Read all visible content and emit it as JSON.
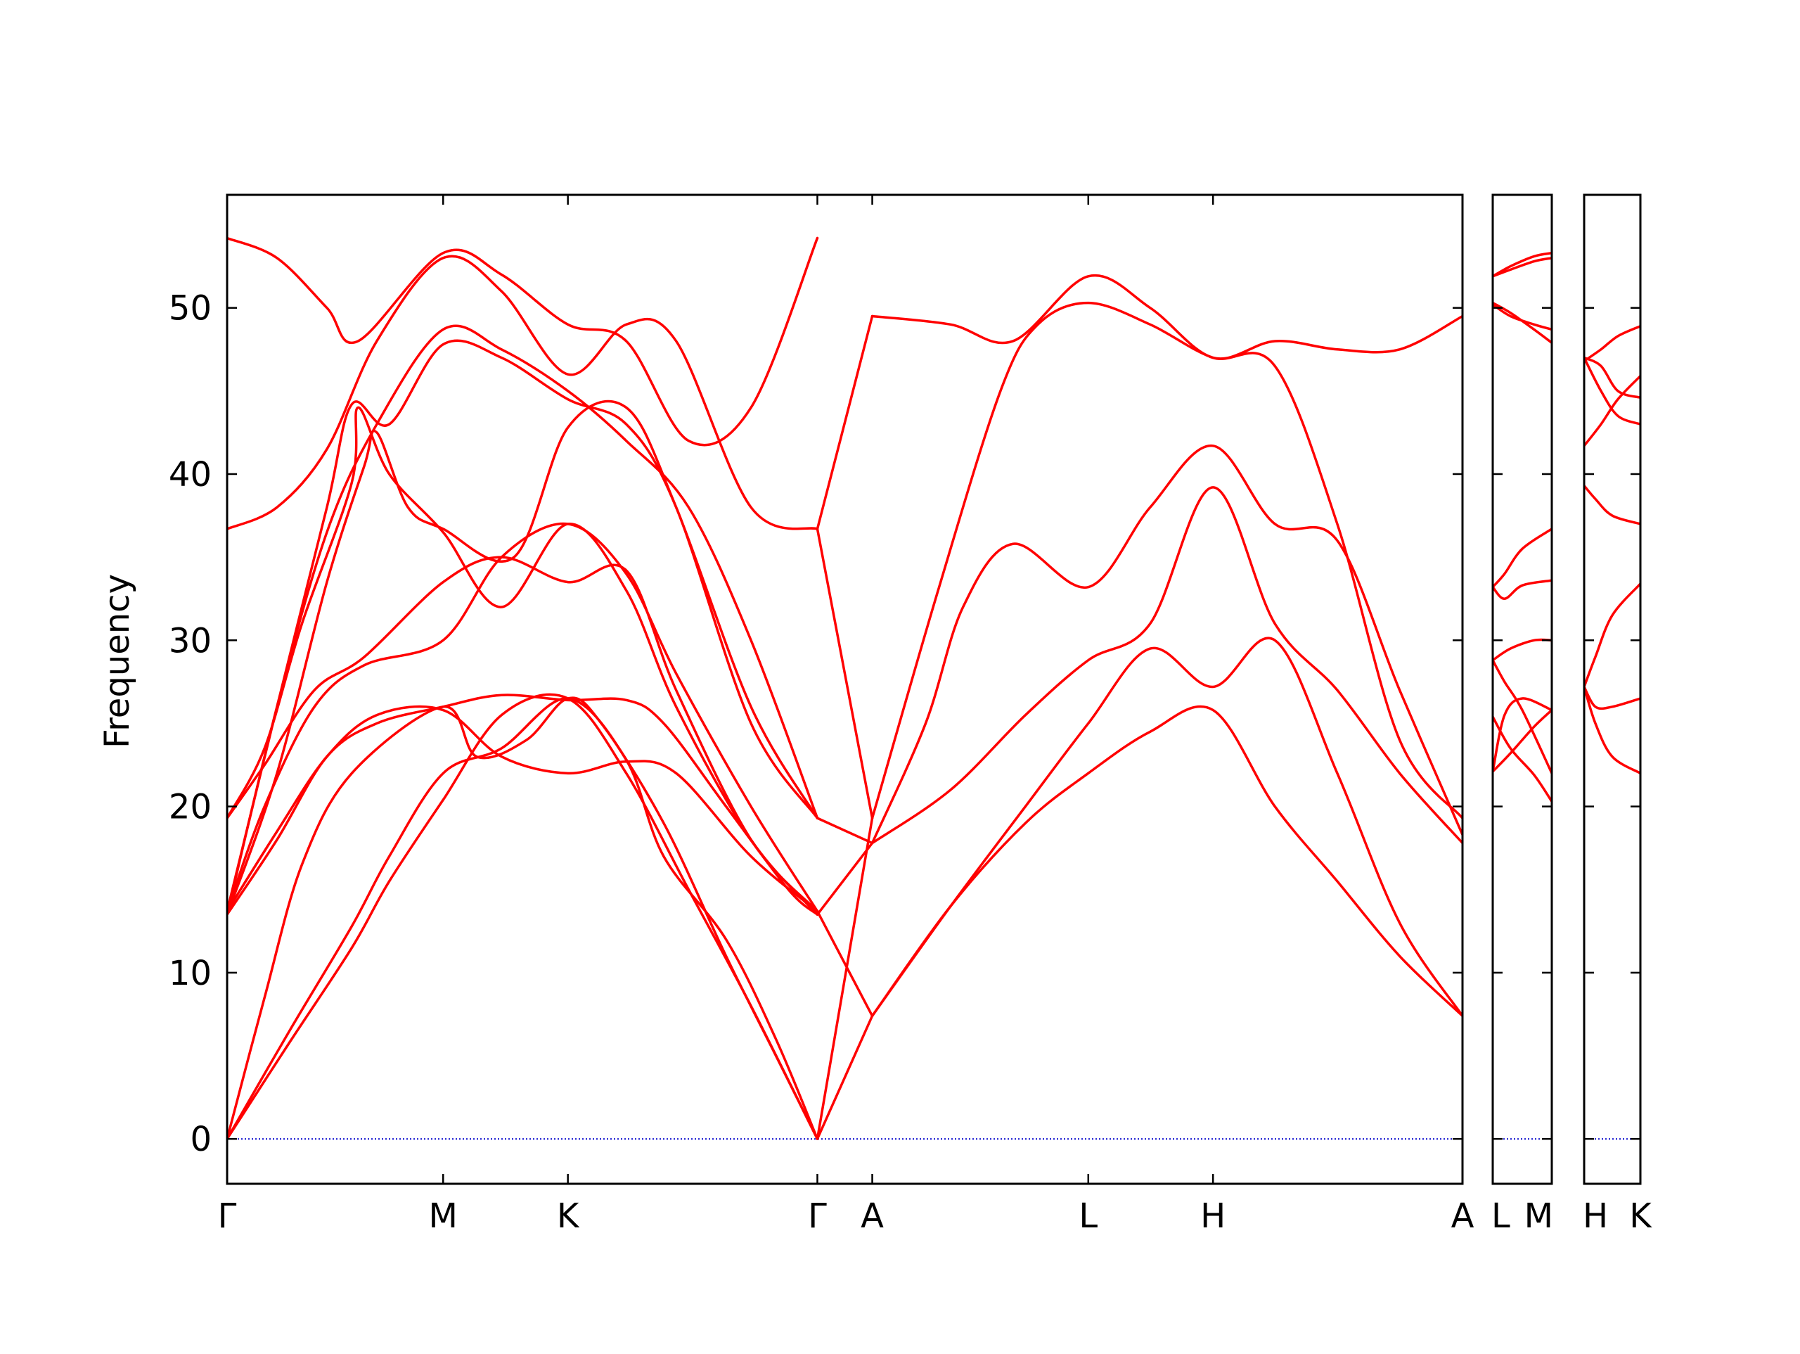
{
  "chart_data": {
    "type": "line",
    "title": "",
    "ylabel": "Frequency",
    "ylim": [
      -2.7,
      56.8
    ],
    "yticks": [
      0,
      10,
      20,
      30,
      40,
      50
    ],
    "grid": false,
    "legend": "none",
    "line_color": "#ff0000",
    "zero_line_color": "#0000cc",
    "panels": [
      {
        "id": "main",
        "labels": [
          "Γ",
          "M",
          "K",
          "Γ",
          "A",
          "L",
          "H",
          "A"
        ],
        "xticks": [
          0,
          1.732,
          2.732,
          4.732,
          5.172,
          6.904,
          7.904,
          9.904
        ],
        "xlim": [
          0,
          9.904
        ],
        "series": [
          {
            "x": [
              0,
              0.5,
              1.0,
              1.3,
              1.732,
              2.2,
              2.732,
              3.2,
              3.7,
              4.2,
              4.732
            ],
            "y": [
              0,
              5.8,
              11.5,
              15.5,
              20.4,
              25.5,
              26.5,
              22,
              15,
              8,
              0
            ]
          },
          {
            "x": [
              0,
              0.5,
              1.0,
              1.3,
              1.732,
              2.2,
              2.732,
              3.2,
              3.5,
              4.0,
              4.4,
              4.732
            ],
            "y": [
              0,
              6.5,
              12.8,
              17,
              22,
              23.5,
              26.5,
              22.8,
              17,
              12,
              6,
              0
            ]
          },
          {
            "x": [
              0,
              0.3,
              0.6,
              1.0,
              1.732,
              2.0,
              2.4,
              2.732,
              3.0,
              3.5,
              4.0,
              4.4,
              4.732
            ],
            "y": [
              0,
              8.5,
              16.5,
              22,
              26,
              23,
              24,
              26.5,
              25,
              19,
              11,
              5,
              0
            ]
          },
          {
            "x": [
              0,
              0.4,
              0.8,
              1.2,
              1.732,
              2.2,
              2.732,
              3.2,
              3.5,
              4.0,
              4.5,
              4.732
            ],
            "y": [
              13.5,
              18,
              23,
              25,
              26,
              26.7,
              26.4,
              26.4,
              25,
              20,
              15,
              13.5
            ]
          },
          {
            "x": [
              0,
              0.4,
              0.8,
              1.2,
              1.732,
              2.2,
              2.732,
              3.2,
              3.6,
              4.2,
              4.732
            ],
            "y": [
              13.7,
              18.5,
              23,
              25.5,
              25.8,
              23,
              22,
              22.7,
              22,
              17,
              13.7
            ]
          },
          {
            "x": [
              0,
              0.3,
              0.7,
              1.1,
              1.732,
              2.2,
              2.732,
              3.2,
              3.6,
              4.2,
              4.732
            ],
            "y": [
              13.7,
              20,
              26,
              28.5,
              30,
              35,
              37,
              34,
              28,
              20,
              13.7
            ]
          },
          {
            "x": [
              0,
              0.3,
              0.7,
              1.1,
              1.732,
              2.2,
              2.732,
              3.2,
              3.6,
              4.2,
              4.732
            ],
            "y": [
              19.3,
              22.5,
              27,
              29,
              33.5,
              35,
              33.5,
              34.2,
              27,
              18,
              13.7
            ]
          },
          {
            "x": [
              0,
              0.4,
              0.8,
              1.1,
              1.2,
              1.45,
              1.732,
              2.3,
              2.732,
              3.2,
              3.6,
              4.2,
              4.732
            ],
            "y": [
              13.5,
              22,
              33.5,
              40.5,
              42.5,
              38,
              36.7,
              35,
              42.8,
              44,
              38,
              26,
              19.3
            ]
          },
          {
            "x": [
              0,
              0.3,
              0.6,
              1.0,
              1.05,
              1.3,
              1.732,
              2.2,
              2.732,
              3.2,
              3.6,
              4.2,
              4.732
            ],
            "y": [
              19.3,
              23.5,
              31,
              39.5,
              44,
              40,
              36.5,
              32,
              37,
              33,
              26,
              18,
              13.5
            ]
          },
          {
            "x": [
              0,
              0.4,
              0.8,
              1.0,
              1.3,
              1.732,
              2.2,
              2.732,
              3.2,
              3.6,
              4.2,
              4.732
            ],
            "y": [
              13.7,
              26,
              38,
              44.2,
              43,
              47.8,
              47,
              44.5,
              43,
              38,
              25,
              19.3
            ]
          },
          {
            "x": [
              0,
              0.4,
              0.8,
              1.2,
              1.732,
              2.2,
              2.732,
              3.2,
              3.7,
              4.2,
              4.732
            ],
            "y": [
              13.5,
              26,
              36.5,
              43,
              48.7,
              47.5,
              45,
              42,
              38,
              30,
              19.3
            ]
          },
          {
            "x": [
              0,
              0.4,
              0.8,
              1.2,
              1.732,
              2.2,
              2.732,
              3.2,
              3.6,
              4.2,
              4.732
            ],
            "y": [
              36.7,
              38,
              41.5,
              48,
              53,
              51,
              46,
              49,
              48,
              38,
              36.7
            ]
          },
          {
            "x": [
              0,
              0.4,
              0.8,
              1.05,
              1.732,
              2.2,
              2.732,
              3.2,
              3.7,
              4.2,
              4.732
            ],
            "y": [
              54.2,
              53,
              50,
              48,
              53.3,
              52,
              49,
              48,
              42,
              44,
              54.2
            ]
          },
          {
            "x": [
              4.732,
              5.172
            ],
            "y": [
              0,
              7.4
            ]
          },
          {
            "x": [
              4.732,
              5.172
            ],
            "y": [
              13.7,
              7.4
            ]
          },
          {
            "x": [
              4.732,
              5.172
            ],
            "y": [
              0,
              19.3
            ]
          },
          {
            "x": [
              4.732,
              5.172
            ],
            "y": [
              13.5,
              17.8
            ]
          },
          {
            "x": [
              4.732,
              5.172
            ],
            "y": [
              19.3,
              17.8
            ]
          },
          {
            "x": [
              4.732,
              5.172
            ],
            "y": [
              36.7,
              19.3
            ]
          },
          {
            "x": [
              4.732,
              5.172
            ],
            "y": [
              36.7,
              49.5
            ]
          },
          {
            "x": [
              5.172,
              5.8,
              6.4,
              6.904,
              7.4,
              7.904,
              8.4,
              8.9,
              9.4,
              9.904
            ],
            "y": [
              7.4,
              14,
              19,
              22,
              24.5,
              25.8,
              20,
              15.5,
              11,
              7.4
            ]
          },
          {
            "x": [
              5.172,
              5.8,
              6.4,
              6.904,
              7.4,
              7.904,
              8.4,
              8.9,
              9.4,
              9.904
            ],
            "y": [
              7.4,
              14,
              20,
              25,
              29.5,
              27.2,
              30,
              22,
              13,
              7.4
            ]
          },
          {
            "x": [
              5.172,
              5.8,
              6.4,
              6.904,
              7.4,
              7.904,
              8.4,
              8.9,
              9.4,
              9.904
            ],
            "y": [
              17.8,
              21,
              25.5,
              28.8,
              31,
              39.2,
              31,
              27,
              22,
              17.8
            ]
          },
          {
            "x": [
              5.172,
              5.6,
              5.9,
              6.3,
              6.904,
              7.4,
              7.904,
              8.4,
              8.9,
              9.4,
              9.904
            ],
            "y": [
              17.8,
              25,
              32,
              35.8,
              33.2,
              38,
              41.7,
              37,
              36,
              27,
              18.3
            ]
          },
          {
            "x": [
              5.172,
              5.7,
              6.2,
              6.5,
              6.904,
              7.4,
              7.904,
              8.4,
              8.9,
              9.4,
              9.904
            ],
            "y": [
              19.3,
              33,
              45,
              49,
              50.3,
              49,
              47,
              46.5,
              37,
              24,
              19.3
            ]
          },
          {
            "x": [
              5.172,
              5.8,
              6.3,
              6.904,
              7.4,
              7.904,
              8.4,
              8.9,
              9.4,
              9.904
            ],
            "y": [
              49.5,
              49,
              48,
              51.9,
              50,
              47,
              48,
              47.5,
              47.5,
              49.5
            ]
          }
        ]
      },
      {
        "id": "L-M",
        "labels": [
          "L",
          "M"
        ],
        "xticks": [
          0,
          1
        ],
        "xlim": [
          0,
          1
        ],
        "series": [
          {
            "x": [
              0,
              0.3,
              0.7,
              1
            ],
            "y": [
              22.1,
              23.2,
              24.8,
              25.8
            ]
          },
          {
            "x": [
              0,
              0.3,
              0.7,
              1
            ],
            "y": [
              25.4,
              23.5,
              21.9,
              20.3
            ]
          },
          {
            "x": [
              0,
              0.2,
              0.5,
              1
            ],
            "y": [
              28.8,
              27.5,
              25.8,
              22
            ]
          },
          {
            "x": [
              0,
              0.2,
              0.5,
              1
            ],
            "y": [
              22.1,
              25.5,
              26.5,
              25.8
            ]
          },
          {
            "x": [
              0,
              0.3,
              0.7,
              1
            ],
            "y": [
              28.8,
              29.5,
              30,
              30
            ]
          },
          {
            "x": [
              0,
              0.2,
              0.5,
              1
            ],
            "y": [
              33.2,
              32.5,
              33.3,
              33.6
            ]
          },
          {
            "x": [
              0,
              0.2,
              0.5,
              1
            ],
            "y": [
              33.2,
              34,
              35.5,
              36.7
            ]
          },
          {
            "x": [
              0,
              0.3,
              0.7,
              1
            ],
            "y": [
              50.3,
              49.7,
              48.7,
              47.9
            ]
          },
          {
            "x": [
              0,
              0.3,
              0.7,
              1
            ],
            "y": [
              50.2,
              49.5,
              49,
              48.7
            ]
          },
          {
            "x": [
              0,
              0.3,
              0.7,
              1
            ],
            "y": [
              51.9,
              52.3,
              52.8,
              53
            ]
          },
          {
            "x": [
              0,
              0.3,
              0.7,
              1
            ],
            "y": [
              51.9,
              52.5,
              53.1,
              53.3
            ]
          }
        ]
      },
      {
        "id": "H-K",
        "labels": [
          "H",
          "K"
        ],
        "xticks": [
          0,
          1
        ],
        "xlim": [
          0,
          1
        ],
        "series": [
          {
            "x": [
              0,
              0.2,
              0.5,
              1
            ],
            "y": [
              27.2,
              26,
              26,
              26.5
            ]
          },
          {
            "x": [
              0,
              0.2,
              0.5,
              1
            ],
            "y": [
              27.2,
              25,
              23,
              22
            ]
          },
          {
            "x": [
              0,
              0.2,
              0.5,
              1
            ],
            "y": [
              27.2,
              29,
              31.5,
              33.4
            ]
          },
          {
            "x": [
              0,
              0.2,
              0.5,
              1
            ],
            "y": [
              39.3,
              38.5,
              37.5,
              37
            ]
          },
          {
            "x": [
              0,
              0.3,
              0.6,
              1
            ],
            "y": [
              41.7,
              43,
              44.5,
              45.9
            ]
          },
          {
            "x": [
              0,
              0.3,
              0.6,
              1
            ],
            "y": [
              47,
              45,
              43.5,
              43
            ]
          },
          {
            "x": [
              0,
              0.3,
              0.6,
              1
            ],
            "y": [
              47,
              46.5,
              45,
              44.6
            ]
          },
          {
            "x": [
              0,
              0.3,
              0.6,
              1
            ],
            "y": [
              46.8,
              47.5,
              48.3,
              48.9
            ]
          }
        ]
      }
    ]
  }
}
